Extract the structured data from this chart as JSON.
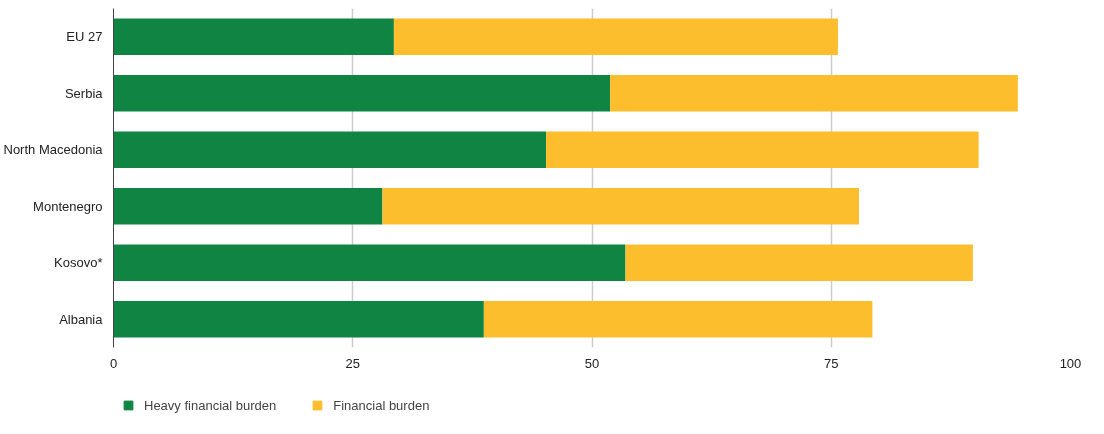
{
  "chart_data": {
    "type": "bar",
    "orientation": "horizontal",
    "stacked": true,
    "categories": [
      "EU 27",
      "Serbia",
      "North Macedonia",
      "Montenegro",
      "Kosovo*",
      "Albania"
    ],
    "series": [
      {
        "name": "Heavy financial burden",
        "color": "#0f8443",
        "values": [
          29.3,
          51.9,
          45.2,
          28.1,
          53.5,
          38.7
        ]
      },
      {
        "name": "Financial burden",
        "color": "#fdbe2d",
        "values": [
          46.4,
          42.6,
          45.2,
          49.8,
          36.3,
          40.6
        ]
      }
    ],
    "xlim": [
      0,
      100
    ],
    "xticks": [
      0,
      25,
      50,
      75,
      100
    ],
    "grid": "x",
    "legend": "bottom left"
  }
}
